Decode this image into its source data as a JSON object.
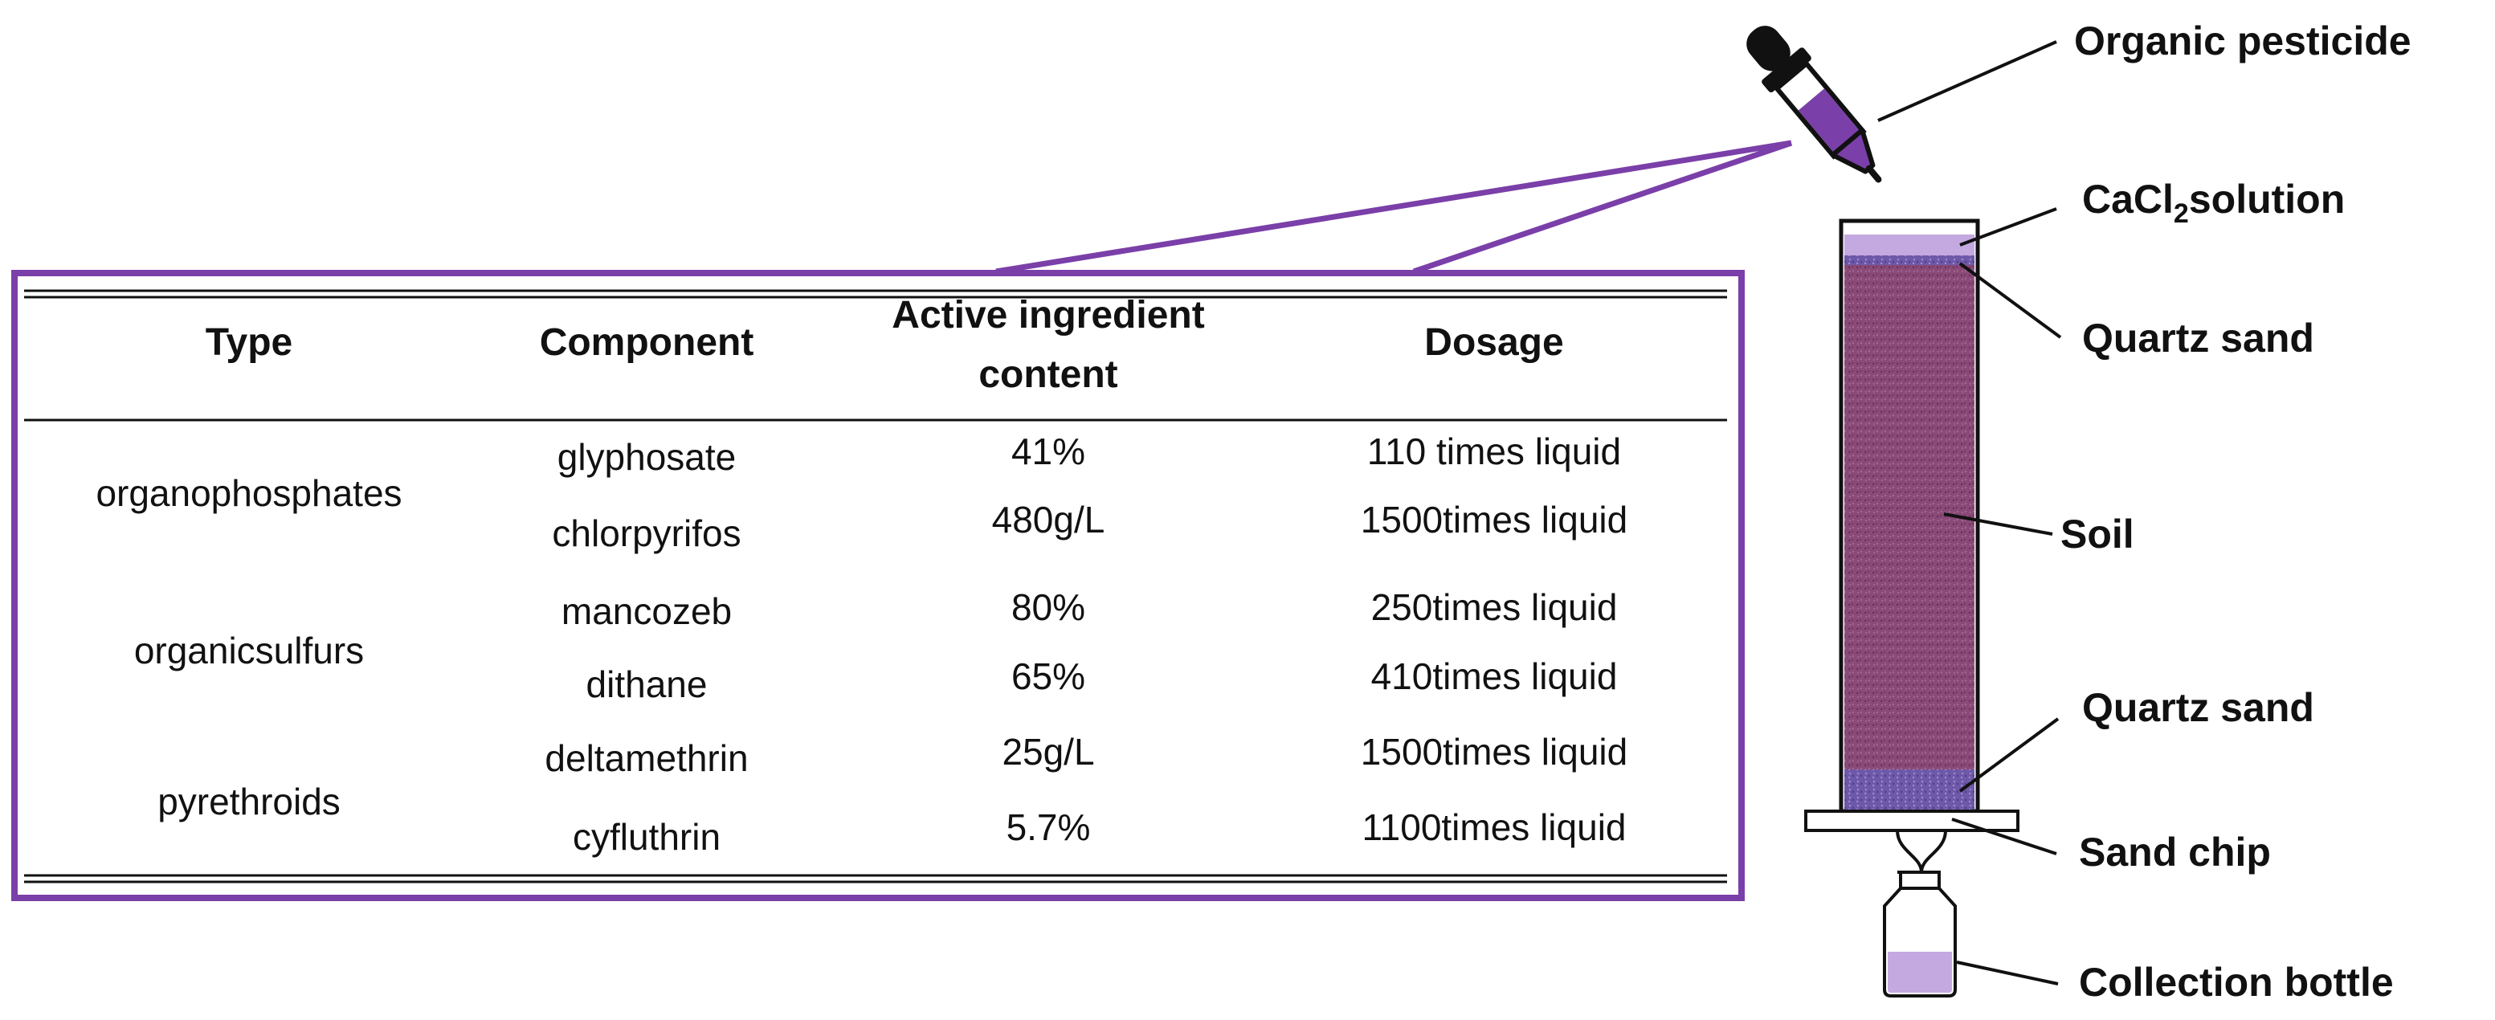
{
  "colors": {
    "accent_purple": "#7a3fa8",
    "soil": "#8a4a78",
    "sand": "#6e58a8",
    "liquid": "#c4a8e0",
    "line": "#111111"
  },
  "table": {
    "headers": {
      "type": "Type",
      "component": "Component",
      "active_line1": "Active ingredient",
      "active_line2": "content",
      "dosage": "Dosage"
    },
    "groups": [
      {
        "type": "organophosphates"
      },
      {
        "type": "organicsulfurs"
      },
      {
        "type": "pyrethroids"
      }
    ],
    "rows": [
      {
        "component": "glyphosate",
        "content": "41%",
        "dosage": "110 times liquid"
      },
      {
        "component": "chlorpyrifos",
        "content": "480g/L",
        "dosage": "1500times liquid"
      },
      {
        "component": "mancozeb",
        "content": "80%",
        "dosage": "250times liquid"
      },
      {
        "component": "dithane",
        "content": "65%",
        "dosage": "410times liquid"
      },
      {
        "component": "deltamethrin",
        "content": "25g/L",
        "dosage": "1500times liquid"
      },
      {
        "component": "cyfluthrin",
        "content": "5.7%",
        "dosage": "1100times liquid"
      }
    ]
  },
  "labels": {
    "organic_pesticide": "Organic pesticide",
    "cacl2_prefix": "CaCl",
    "cacl2_sub": "2",
    "cacl2_suffix": "solution",
    "quartz_sand_top": "Quartz sand",
    "soil": "Soil",
    "quartz_sand_bottom": "Quartz sand",
    "sand_chip": "Sand chip",
    "collection_bottle": "Collection bottle"
  },
  "icons": {
    "dropper": "dropper-icon",
    "column": "soil-column-icon",
    "bottle": "collection-bottle-icon"
  }
}
